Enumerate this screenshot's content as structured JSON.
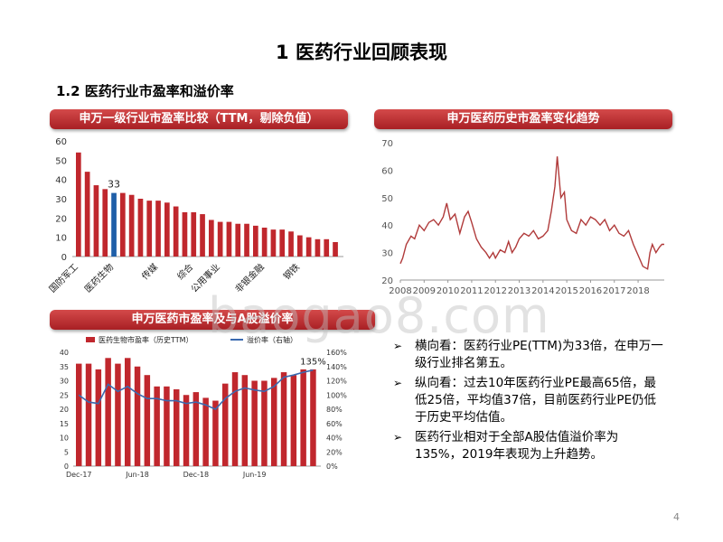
{
  "slide": {
    "title": "1 医药行业回顾表现",
    "subtitle": "1.2 医药行业市盈率和溢价率",
    "page_number": "4",
    "watermark": "baogao8.com",
    "colors": {
      "bar_red": "#c0272d",
      "highlight_blue": "#1f5fa8",
      "line_red": "#b03a3a",
      "premium_blue": "#3a6ab0"
    }
  },
  "banners": {
    "left_top": "申万一级行业市盈率比较（TTM，剔除负值）",
    "right_top": "申万医药历史市盈率变化趋势",
    "left_bottom": "申万医药市盈率及与A股溢价率"
  },
  "bullets": [
    "横向看：医药行业PE(TTM)为33倍，在申万一级行业排名第五。",
    "纵向看：过去10年医药行业PE最高65倍，最低25倍，平均值37倍，目前医药行业PE仍低于历史平均估值。",
    "医药行业相对于全部A股估值溢价率为135%，2019年表现为上升趋势。"
  ],
  "chart_data": [
    {
      "type": "bar",
      "title": "申万一级行业市盈率比较（TTM，剔除负值）",
      "ylim": [
        0,
        60
      ],
      "yticks": [
        0,
        10,
        20,
        30,
        40,
        50,
        60
      ],
      "values": [
        54,
        44,
        37,
        35,
        33,
        33,
        32,
        30,
        29,
        29,
        28,
        26,
        23,
        23,
        22,
        19,
        18,
        18,
        17,
        17,
        16,
        15,
        14,
        14,
        13,
        11,
        10,
        9,
        9,
        7.5
      ],
      "highlight_index": 4,
      "highlight_label": "33",
      "tick_labels": [
        {
          "index": 0,
          "label": "国防军工"
        },
        {
          "index": 4,
          "label": "医药生物"
        },
        {
          "index": 9,
          "label": "传媒"
        },
        {
          "index": 13,
          "label": "综合"
        },
        {
          "index": 16,
          "label": "公用事业"
        },
        {
          "index": 21,
          "label": "非银金融"
        },
        {
          "index": 25,
          "label": "钢铁"
        }
      ]
    },
    {
      "type": "line",
      "title": "申万医药历史市盈率变化趋势",
      "ylim": [
        20,
        70
      ],
      "yticks": [
        20,
        30,
        40,
        50,
        60,
        70
      ],
      "xlim": [
        2008,
        2019.1
      ],
      "xticks": [
        "2008",
        "2009",
        "2010",
        "2011",
        "2012",
        "2013",
        "2014",
        "2015",
        "2016",
        "2017",
        "2018"
      ],
      "points": [
        [
          2008.0,
          26
        ],
        [
          2008.1,
          28
        ],
        [
          2008.25,
          33
        ],
        [
          2008.45,
          36
        ],
        [
          2008.6,
          35
        ],
        [
          2008.8,
          40
        ],
        [
          2009.0,
          38
        ],
        [
          2009.2,
          41
        ],
        [
          2009.4,
          42
        ],
        [
          2009.6,
          40
        ],
        [
          2009.8,
          43
        ],
        [
          2009.95,
          48
        ],
        [
          2010.1,
          42
        ],
        [
          2010.3,
          44
        ],
        [
          2010.5,
          37
        ],
        [
          2010.7,
          43
        ],
        [
          2010.85,
          45
        ],
        [
          2011.0,
          41
        ],
        [
          2011.2,
          35
        ],
        [
          2011.4,
          32
        ],
        [
          2011.6,
          30
        ],
        [
          2011.75,
          28
        ],
        [
          2011.9,
          30
        ],
        [
          2012.0,
          28
        ],
        [
          2012.2,
          31
        ],
        [
          2012.4,
          30
        ],
        [
          2012.55,
          34
        ],
        [
          2012.7,
          30
        ],
        [
          2012.85,
          32
        ],
        [
          2013.0,
          35
        ],
        [
          2013.2,
          37
        ],
        [
          2013.4,
          36
        ],
        [
          2013.6,
          38
        ],
        [
          2013.8,
          35
        ],
        [
          2014.0,
          36
        ],
        [
          2014.2,
          38
        ],
        [
          2014.35,
          45
        ],
        [
          2014.5,
          54
        ],
        [
          2014.6,
          65
        ],
        [
          2014.75,
          50
        ],
        [
          2014.9,
          52
        ],
        [
          2015.0,
          42
        ],
        [
          2015.2,
          38
        ],
        [
          2015.4,
          37
        ],
        [
          2015.6,
          42
        ],
        [
          2015.8,
          40
        ],
        [
          2016.0,
          43
        ],
        [
          2016.2,
          42
        ],
        [
          2016.4,
          40
        ],
        [
          2016.6,
          42
        ],
        [
          2016.8,
          38
        ],
        [
          2017.0,
          40
        ],
        [
          2017.2,
          37
        ],
        [
          2017.4,
          36
        ],
        [
          2017.6,
          38
        ],
        [
          2017.8,
          33
        ],
        [
          2018.0,
          29
        ],
        [
          2018.2,
          25
        ],
        [
          2018.4,
          24
        ],
        [
          2018.5,
          30
        ],
        [
          2018.6,
          33
        ],
        [
          2018.75,
          30
        ],
        [
          2018.9,
          32
        ],
        [
          2019.0,
          33
        ],
        [
          2019.1,
          33
        ]
      ]
    },
    {
      "type": "bar+line",
      "title": "申万医药市盈率及与A股溢价率",
      "legend": [
        "医药生物市盈率（历史TTM）",
        "溢价率（右轴）"
      ],
      "ylim": [
        0,
        40
      ],
      "yticks": [
        0,
        5,
        10,
        15,
        20,
        25,
        30,
        35,
        40
      ],
      "y2lim": [
        0,
        160
      ],
      "y2ticks": [
        "0%",
        "20%",
        "40%",
        "60%",
        "80%",
        "100%",
        "120%",
        "140%",
        "160%"
      ],
      "xticks": [
        "Dec-17",
        "Jun-18",
        "Dec-18",
        "Jun-19"
      ],
      "pe_values": [
        36,
        36,
        34,
        38,
        36,
        38,
        35,
        32,
        28,
        28,
        27,
        25,
        26,
        24,
        23,
        29,
        33,
        32,
        30,
        30,
        31,
        33,
        32,
        34,
        34
      ],
      "premium_values": [
        100,
        90,
        88,
        115,
        105,
        112,
        102,
        95,
        95,
        92,
        92,
        88,
        90,
        86,
        80,
        95,
        105,
        110,
        107,
        105,
        112,
        125,
        128,
        132,
        135
      ],
      "annotation": "135%"
    }
  ]
}
